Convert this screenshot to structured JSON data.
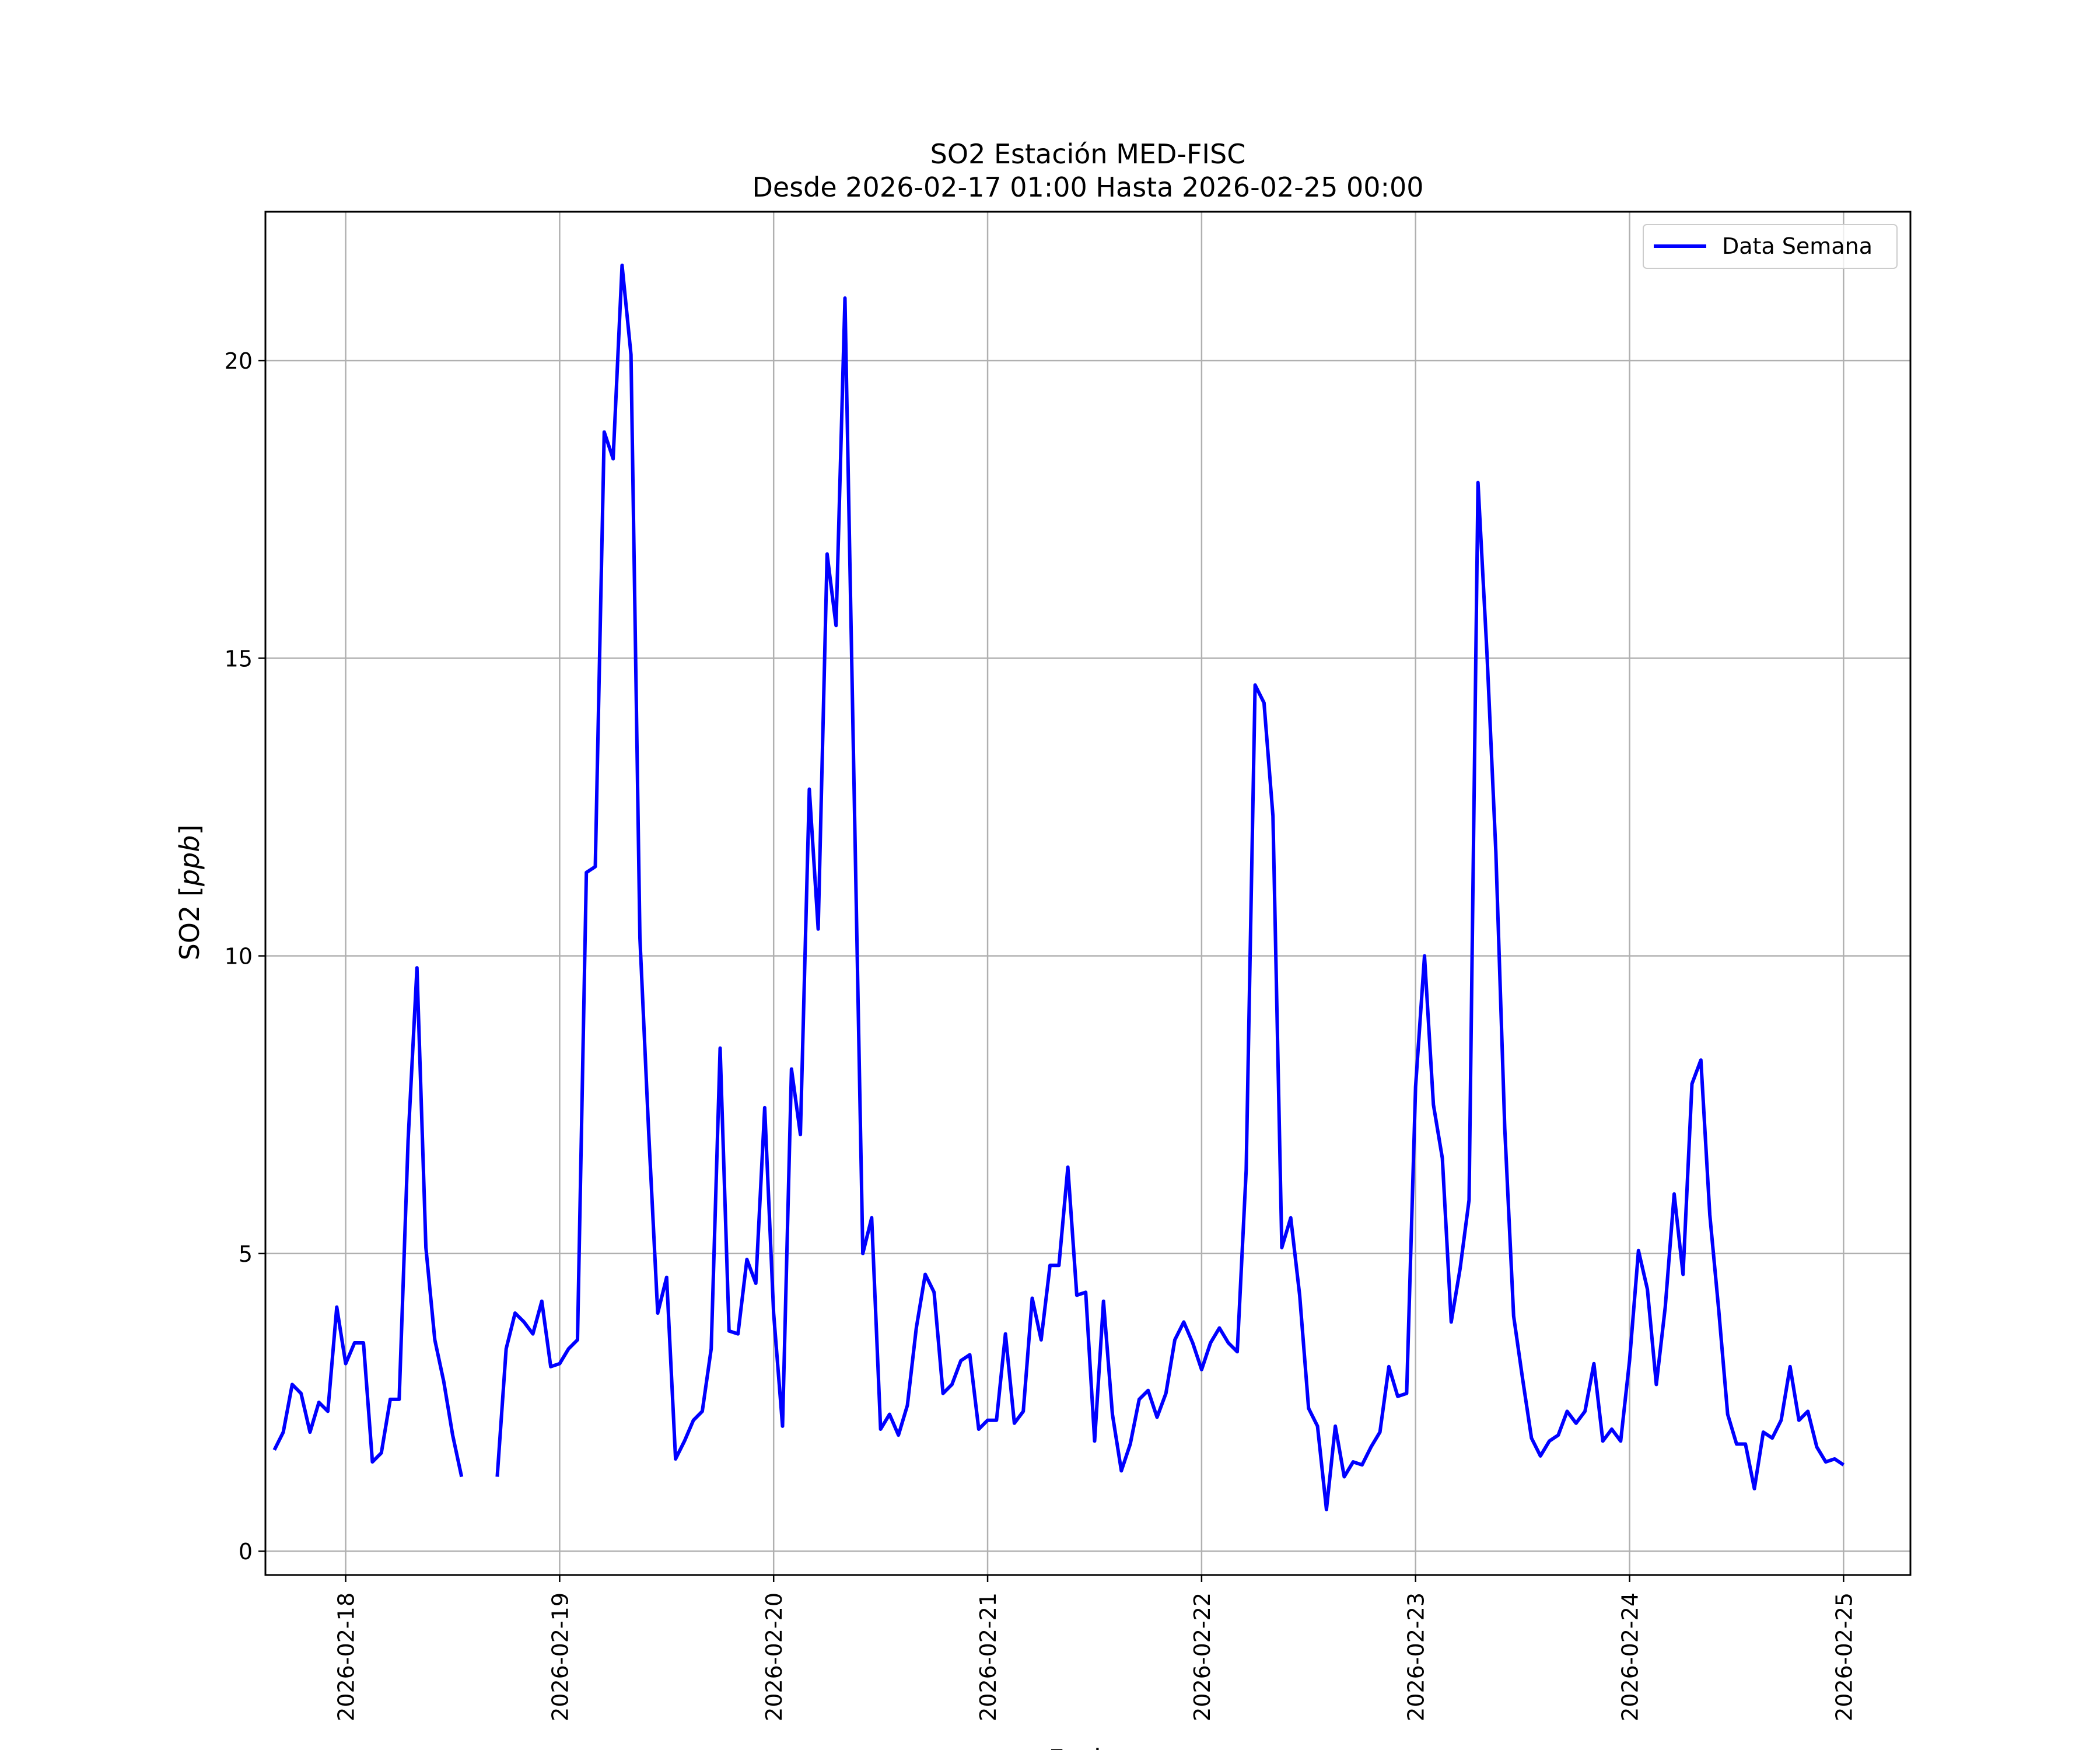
{
  "chart_data": {
    "type": "line",
    "title": "SO2 Estación MED-FISC",
    "subtitle": "Desde 2026-02-17 01:00 Hasta 2026-02-25 00:00",
    "xlabel": "Fecha",
    "ylabel": "SO2 [ppb]",
    "ylabel_parts": {
      "prefix": "SO2 [",
      "unit": "ppb",
      "suffix": "]"
    },
    "xlim": [
      "2026-02-17 15:00",
      "2026-02-25 07:30"
    ],
    "ylim": [
      -0.4,
      22.5
    ],
    "x_ticks": [
      "2026-02-18",
      "2026-02-19",
      "2026-02-20",
      "2026-02-21",
      "2026-02-22",
      "2026-02-23",
      "2026-02-24",
      "2026-02-25"
    ],
    "y_ticks": [
      0,
      5,
      10,
      15,
      20
    ],
    "grid": true,
    "legend_position": "top-right",
    "colors": {
      "line": "#0000ff",
      "grid": "#b0b0b0",
      "axes": "#000000"
    },
    "series": [
      {
        "name": "Data Semana",
        "x_start": "2026-02-17 16:00",
        "x_step_hours": 1,
        "values": [
          1.7,
          2.0,
          2.8,
          2.65,
          2.0,
          2.5,
          2.35,
          4.1,
          3.15,
          3.5,
          3.5,
          1.5,
          1.65,
          2.55,
          2.55,
          6.9,
          9.8,
          5.1,
          3.55,
          2.85,
          1.95,
          1.25,
          null,
          null,
          null,
          1.25,
          3.4,
          4.0,
          3.85,
          3.65,
          4.2,
          3.1,
          3.15,
          3.4,
          3.55,
          11.4,
          11.5,
          18.8,
          18.35,
          21.6,
          20.1,
          10.3,
          7.0,
          4.0,
          4.6,
          1.55,
          1.85,
          2.2,
          2.35,
          3.4,
          8.45,
          3.7,
          3.65,
          4.9,
          4.5,
          7.45,
          4.0,
          2.1,
          8.1,
          7.0,
          12.8,
          10.45,
          16.75,
          15.55,
          21.05,
          13.0,
          5.0,
          5.6,
          2.05,
          2.3,
          1.95,
          2.45,
          3.75,
          4.65,
          4.35,
          2.65,
          2.8,
          3.2,
          3.3,
          2.05,
          2.2,
          2.2,
          3.65,
          2.15,
          2.35,
          4.25,
          3.55,
          4.8,
          4.8,
          6.45,
          4.3,
          4.35,
          1.85,
          4.2,
          2.3,
          1.35,
          1.8,
          2.55,
          2.7,
          2.25,
          2.65,
          3.55,
          3.85,
          3.5,
          3.05,
          3.5,
          3.75,
          3.5,
          3.35,
          6.4,
          14.55,
          14.25,
          12.35,
          5.1,
          5.6,
          4.3,
          2.4,
          2.1,
          0.7,
          2.1,
          1.25,
          1.5,
          1.45,
          1.75,
          2.0,
          3.1,
          2.6,
          2.65,
          7.8,
          10.0,
          7.5,
          6.6,
          3.85,
          4.75,
          5.9,
          17.95,
          15.1,
          11.75,
          7.1,
          3.95,
          2.9,
          1.9,
          1.6,
          1.85,
          1.95,
          2.35,
          2.15,
          2.35,
          3.15,
          1.85,
          2.05,
          1.85,
          3.2,
          5.05,
          4.4,
          2.8,
          4.1,
          6.0,
          4.65,
          7.85,
          8.25,
          5.65,
          4.05,
          2.3,
          1.8,
          1.8,
          1.05,
          2.0,
          1.9,
          2.2,
          3.1,
          2.2,
          2.35,
          1.75,
          1.5,
          1.55,
          1.45
        ]
      }
    ]
  }
}
